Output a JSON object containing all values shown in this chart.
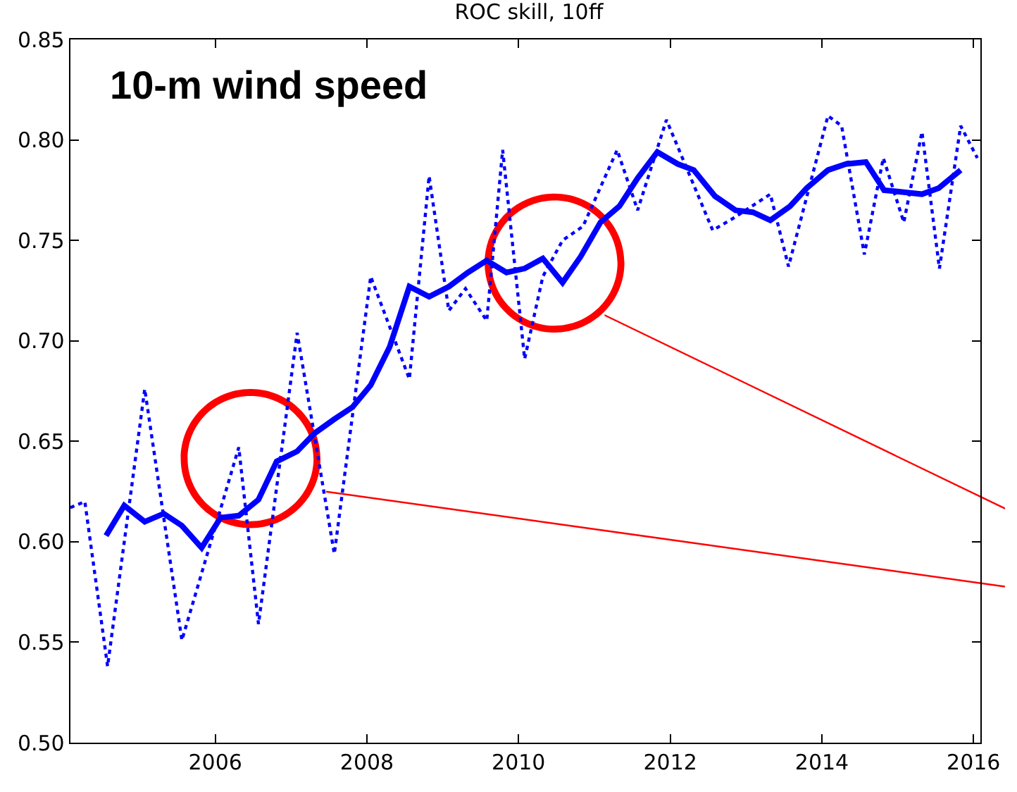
{
  "chart_data": {
    "type": "line",
    "title": "ROC skill, 10ff",
    "annotations": [
      "10-m wind speed"
    ],
    "xlim": [
      2004.09,
      2016.09
    ],
    "xticks": [
      2006,
      2008,
      2010,
      2012,
      2014,
      2016
    ],
    "ylim": [
      0.5,
      0.85
    ],
    "yticks": [
      {
        "value": 0.5,
        "label": "0.50"
      },
      {
        "value": 0.55,
        "label": "0.55"
      },
      {
        "value": 0.6,
        "label": "0.60"
      },
      {
        "value": 0.65,
        "label": "0.65"
      },
      {
        "value": 0.7,
        "label": "0.70"
      },
      {
        "value": 0.75,
        "label": "0.75"
      },
      {
        "value": 0.8,
        "label": "0.80"
      },
      {
        "value": 0.85,
        "label": "0.85"
      }
    ],
    "grid": false,
    "marker": "none",
    "series": [
      {
        "color": "#0000ff",
        "line_style": "dotted",
        "x": [
          2004.09,
          2004.28,
          2004.58,
          2005.07,
          2005.56,
          2006.31,
          2006.57,
          2007.08,
          2007.57,
          2008.05,
          2008.56,
          2008.82,
          2009.08,
          2009.3,
          2009.58,
          2009.79,
          2010.08,
          2010.32,
          2010.58,
          2010.85,
          2011.3,
          2011.57,
          2011.95,
          2012.56,
          2012.83,
          2013.32,
          2013.56,
          2014.08,
          2014.26,
          2014.56,
          2014.81,
          2015.08,
          2015.32,
          2015.55,
          2015.83,
          2016.05
        ],
        "values": [
          0.617,
          0.62,
          0.538,
          0.676,
          0.551,
          0.647,
          0.559,
          0.704,
          0.594,
          0.732,
          0.681,
          0.782,
          0.715,
          0.726,
          0.71,
          0.795,
          0.691,
          0.732,
          0.75,
          0.757,
          0.795,
          0.765,
          0.81,
          0.755,
          0.761,
          0.773,
          0.737,
          0.812,
          0.807,
          0.743,
          0.791,
          0.759,
          0.804,
          0.736,
          0.807,
          0.791
        ]
      },
      {
        "color": "#0000ff",
        "line_style": "solid",
        "x": [
          2004.56,
          2004.8,
          2005.07,
          2005.32,
          2005.56,
          2005.82,
          2006.07,
          2006.31,
          2006.57,
          2006.81,
          2007.08,
          2007.31,
          2007.57,
          2007.81,
          2008.05,
          2008.3,
          2008.56,
          2008.82,
          2009.08,
          2009.33,
          2009.58,
          2009.84,
          2010.08,
          2010.32,
          2010.58,
          2010.82,
          2011.08,
          2011.33,
          2011.57,
          2011.83,
          2012.1,
          2012.31,
          2012.59,
          2012.86,
          2013.09,
          2013.32,
          2013.58,
          2013.8,
          2014.08,
          2014.32,
          2014.58,
          2014.82,
          2015.08,
          2015.32,
          2015.54,
          2015.83
        ],
        "values": [
          0.603,
          0.618,
          0.61,
          0.614,
          0.608,
          0.597,
          0.612,
          0.613,
          0.621,
          0.64,
          0.645,
          0.654,
          0.661,
          0.667,
          0.678,
          0.697,
          0.727,
          0.722,
          0.727,
          0.734,
          0.74,
          0.734,
          0.736,
          0.741,
          0.729,
          0.742,
          0.759,
          0.767,
          0.781,
          0.794,
          0.788,
          0.785,
          0.772,
          0.765,
          0.764,
          0.76,
          0.767,
          0.776,
          0.785,
          0.788,
          0.789,
          0.775,
          0.774,
          0.773,
          0.776,
          0.785
        ]
      }
    ]
  }
}
